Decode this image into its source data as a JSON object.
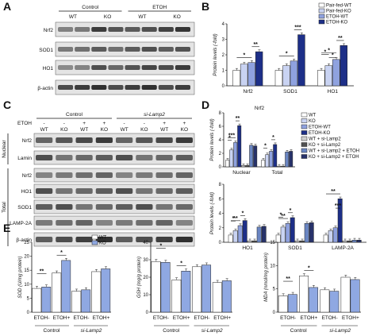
{
  "panel_letters": {
    "a": "A",
    "b": "B",
    "c": "C",
    "d": "D",
    "e": "E"
  },
  "blot_a": {
    "groups": [
      "Control",
      "ETOH"
    ],
    "lanes": [
      "WT",
      "KO",
      "WT",
      "KO"
    ],
    "rows": [
      "Nrf2",
      "SOD1",
      "HO1",
      "β-actin"
    ]
  },
  "blot_c": {
    "top_groups": [
      "Control",
      "si-Lamp2"
    ],
    "etoh_label": "ETOH",
    "etoh_states": [
      "-",
      "-",
      "+",
      "+",
      "-",
      "-",
      "+",
      "+"
    ],
    "genotypes": [
      "WT",
      "KO",
      "WT",
      "KO",
      "WT",
      "KO",
      "WT",
      "KO"
    ],
    "sections": [
      {
        "name": "Nuclear",
        "rows": [
          "Nrf2",
          "Lamin"
        ]
      },
      {
        "name": "Total",
        "rows": [
          "Nrf2",
          "HO1",
          "SOD1",
          "LAMP-2A",
          "β-actin"
        ]
      }
    ]
  },
  "colors": {
    "white": "#ffffff",
    "light": "#c9d3f2",
    "medium": "#8fa2df",
    "dark": "#1d2f88",
    "lgrey": "#d0d0d0",
    "dgrey": "#505050",
    "steel": "#6a86c2",
    "navy": "#27326a"
  },
  "chart_data": [
    {
      "id": "B",
      "type": "bar",
      "ylabel": "Protein levels (-fold)",
      "ylim": [
        0,
        4
      ],
      "yticks": [
        "0",
        "1",
        "2",
        "3",
        "4"
      ],
      "categories": [
        "Nrf2",
        "SOD1",
        "HO1"
      ],
      "series": [
        {
          "name": "Pair-fed-WT",
          "values": [
            1.0,
            1.0,
            1.0
          ]
        },
        {
          "name": "Pair-fed-KO",
          "values": [
            1.4,
            1.3,
            1.3
          ]
        },
        {
          "name": "ETOH-WT",
          "values": [
            1.5,
            1.6,
            1.7
          ]
        },
        {
          "name": "ETOH-KO",
          "values": [
            2.2,
            3.3,
            2.6
          ]
        }
      ],
      "annotations": [
        "*",
        "**",
        "*",
        "***",
        "*",
        "*",
        "*",
        "**"
      ]
    },
    {
      "id": "D1",
      "type": "bar",
      "title": "Nrf2",
      "ylabel": "Protein levels (-fold)",
      "ylim": [
        0,
        8
      ],
      "yticks": [
        "0",
        "2",
        "4",
        "6",
        "8"
      ],
      "categories": [
        "Nuclear",
        "Total"
      ],
      "series": [
        {
          "name": "WT",
          "values": [
            1.0,
            1.0
          ]
        },
        {
          "name": "KO",
          "values": [
            2.5,
            1.8
          ]
        },
        {
          "name": "ETOH-WT",
          "values": [
            3.6,
            2.3
          ]
        },
        {
          "name": "ETOH-KO",
          "values": [
            6.1,
            3.3
          ]
        },
        {
          "name": "WT + si-Lamp2",
          "values": [
            0.2,
            0.1
          ]
        },
        {
          "name": "KO + si-Lamp2",
          "values": [
            0.2,
            0.1
          ]
        },
        {
          "name": "WT + si-Lamp2 + ETOH",
          "values": [
            3.2,
            2.2
          ]
        },
        {
          "name": "KO + si-Lamp2 + ETOH",
          "values": [
            3.1,
            2.3
          ]
        }
      ],
      "annotations": [
        "*",
        "***",
        "**",
        "*",
        "*"
      ]
    },
    {
      "id": "D2",
      "type": "bar",
      "ylabel": "Protein levels (-fold)",
      "ylim": [
        0,
        8
      ],
      "yticks": [
        "0",
        "2",
        "4",
        "6",
        "8"
      ],
      "categories": [
        "HO1",
        "SOD1",
        "LAMP-2A"
      ],
      "series": [
        {
          "name": "WT",
          "values": [
            1.0,
            1.0,
            1.0
          ]
        },
        {
          "name": "KO",
          "values": [
            1.6,
            2.1,
            1.6
          ]
        },
        {
          "name": "ETOH-WT",
          "values": [
            2.3,
            2.6,
            2.0
          ]
        },
        {
          "name": "ETOH-KO",
          "values": [
            3.0,
            3.4,
            6.0
          ]
        },
        {
          "name": "WT + si-Lamp2",
          "values": [
            0.2,
            0.2,
            0.2
          ]
        },
        {
          "name": "KO + si-Lamp2",
          "values": [
            0.2,
            0.2,
            0.2
          ]
        },
        {
          "name": "WT + si-Lamp2 + ETOH",
          "values": [
            2.1,
            2.6,
            0.3
          ]
        },
        {
          "name": "KO + si-Lamp2 + ETOH",
          "values": [
            2.2,
            2.7,
            0.3
          ]
        }
      ],
      "annotations": [
        "*",
        "**",
        "*",
        "*",
        "**",
        "*",
        "**",
        "***"
      ]
    },
    {
      "id": "E1",
      "type": "bar",
      "ylabel": "SOD (U/mg protein)",
      "ylim": [
        0,
        25
      ],
      "yticks": [
        "0",
        "5",
        "10",
        "15",
        "20",
        "25"
      ],
      "categories": [
        "ETOH-",
        "ETOH+",
        "ETOH-",
        "ETOH+"
      ],
      "groups": [
        "Control",
        "si-Lamp2"
      ],
      "series": [
        {
          "name": "WT",
          "values": [
            8.5,
            14,
            7.5,
            14.5
          ]
        },
        {
          "name": "KO",
          "values": [
            9,
            18.5,
            8,
            15.5
          ]
        }
      ],
      "annotations": [
        "**",
        "*"
      ]
    },
    {
      "id": "E2",
      "type": "bar",
      "ylabel": "GSH (mg/g protein)",
      "ylim": [
        0,
        40
      ],
      "yticks": [
        "0",
        "10",
        "20",
        "30",
        "40"
      ],
      "categories": [
        "ETOH-",
        "ETOH+",
        "ETOH-",
        "ETOH+"
      ],
      "groups": [
        "Control",
        "si-Lamp2"
      ],
      "series": [
        {
          "name": "WT",
          "values": [
            29,
            18.5,
            26,
            17
          ]
        },
        {
          "name": "KO",
          "values": [
            28.5,
            23.5,
            27,
            18
          ]
        }
      ],
      "annotations": [
        "*",
        "*"
      ]
    },
    {
      "id": "E3",
      "type": "bar",
      "ylabel": "MDA (nmol/mg protein)",
      "ylim": [
        0,
        15
      ],
      "yticks": [
        "0",
        "5",
        "10",
        "15"
      ],
      "categories": [
        "ETOH-",
        "ETOH+",
        "ETOH-",
        "ETOH+"
      ],
      "groups": [
        "Control",
        "si-Lamp2"
      ],
      "series": [
        {
          "name": "WT",
          "values": [
            3.5,
            7.8,
            4.8,
            7.5
          ]
        },
        {
          "name": "KO",
          "values": [
            3.8,
            5.3,
            4.5,
            7.0
          ]
        }
      ],
      "annotations": [
        "**",
        "*"
      ]
    }
  ]
}
